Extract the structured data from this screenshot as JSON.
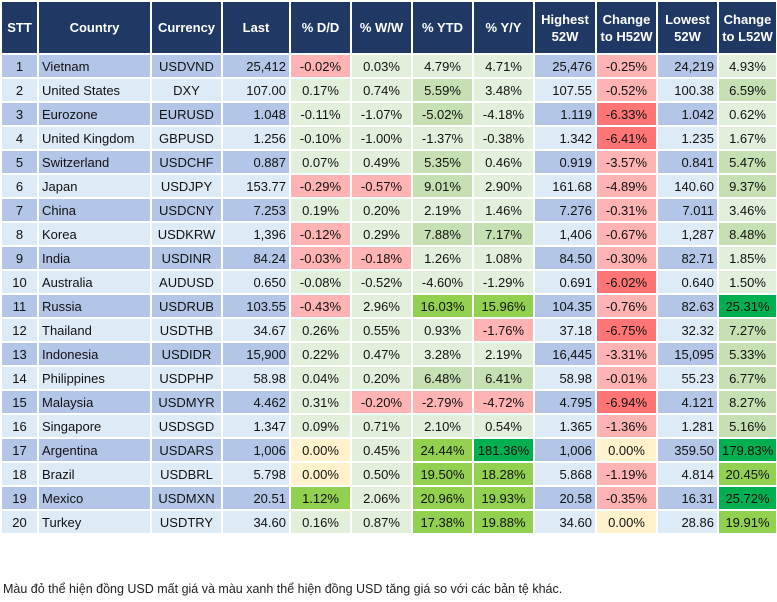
{
  "headers": [
    "STT",
    "Country",
    "Currency",
    "Last",
    "% D/D",
    "% W/W",
    "% YTD",
    "% Y/Y",
    "Highest 52W",
    "Change to H52W",
    "Lowest 52W",
    "Change to L52W"
  ],
  "colors": {
    "header": "#203864",
    "odd_row": "#B4C6E7",
    "even_row": "#DDEBF7",
    "g": "#E2EFDA",
    "p": "#FFB3B3",
    "r": "#FF7575",
    "m": "#C6E0B4",
    "b": "#92D050",
    "d": "#00B050",
    "y": "#FFF2CC"
  },
  "rows": [
    {
      "cells": [
        "1",
        "Vietnam",
        "USDVND",
        "25,412",
        "-0.02%",
        "0.03%",
        "4.79%",
        "4.71%",
        "25,476",
        "-0.25%",
        "24,219",
        "4.93%"
      ],
      "hl": [
        "p",
        "g",
        "g",
        "g",
        "p",
        "g"
      ]
    },
    {
      "cells": [
        "2",
        "United States",
        "DXY",
        "107.00",
        "0.17%",
        "0.74%",
        "5.59%",
        "3.48%",
        "107.55",
        "-0.52%",
        "100.38",
        "6.59%"
      ],
      "hl": [
        "g",
        "g",
        "m",
        "g",
        "p",
        "m"
      ]
    },
    {
      "cells": [
        "3",
        "Eurozone",
        "EURUSD",
        "1.048",
        "-0.11%",
        "-1.07%",
        "-5.02%",
        "-4.18%",
        "1.119",
        "-6.33%",
        "1.042",
        "0.62%"
      ],
      "hl": [
        "g",
        "g",
        "m",
        "g",
        "r",
        "g"
      ]
    },
    {
      "cells": [
        "4",
        "United Kingdom",
        "GBPUSD",
        "1.256",
        "-0.10%",
        "-1.00%",
        "-1.37%",
        "-0.38%",
        "1.342",
        "-6.41%",
        "1.235",
        "1.67%"
      ],
      "hl": [
        "g",
        "g",
        "g",
        "g",
        "r",
        "g"
      ]
    },
    {
      "cells": [
        "5",
        "Switzerland",
        "USDCHF",
        "0.887",
        "0.07%",
        "0.49%",
        "5.35%",
        "0.46%",
        "0.919",
        "-3.57%",
        "0.841",
        "5.47%"
      ],
      "hl": [
        "g",
        "g",
        "m",
        "g",
        "p",
        "m"
      ]
    },
    {
      "cells": [
        "6",
        "Japan",
        "USDJPY",
        "153.77",
        "-0.29%",
        "-0.57%",
        "9.01%",
        "2.90%",
        "161.68",
        "-4.89%",
        "140.60",
        "9.37%"
      ],
      "hl": [
        "p",
        "p",
        "m",
        "g",
        "p",
        "m"
      ]
    },
    {
      "cells": [
        "7",
        "China",
        "USDCNY",
        "7.253",
        "0.19%",
        "0.20%",
        "2.19%",
        "1.46%",
        "7.276",
        "-0.31%",
        "7.011",
        "3.46%"
      ],
      "hl": [
        "g",
        "g",
        "g",
        "g",
        "p",
        "g"
      ]
    },
    {
      "cells": [
        "8",
        "Korea",
        "USDKRW",
        "1,396",
        "-0.12%",
        "0.29%",
        "7.88%",
        "7.17%",
        "1,406",
        "-0.67%",
        "1,287",
        "8.48%"
      ],
      "hl": [
        "p",
        "g",
        "m",
        "m",
        "p",
        "m"
      ]
    },
    {
      "cells": [
        "9",
        "India",
        "USDINR",
        "84.24",
        "-0.03%",
        "-0.18%",
        "1.26%",
        "1.08%",
        "84.50",
        "-0.30%",
        "82.71",
        "1.85%"
      ],
      "hl": [
        "p",
        "p",
        "g",
        "g",
        "p",
        "g"
      ]
    },
    {
      "cells": [
        "10",
        "Australia",
        "AUDUSD",
        "0.650",
        "-0.08%",
        "-0.52%",
        "-4.60%",
        "-1.29%",
        "0.691",
        "-6.02%",
        "0.640",
        "1.50%"
      ],
      "hl": [
        "g",
        "g",
        "g",
        "g",
        "r",
        "g"
      ]
    },
    {
      "cells": [
        "11",
        "Russia",
        "USDRUB",
        "103.55",
        "-0.43%",
        "2.96%",
        "16.03%",
        "15.96%",
        "104.35",
        "-0.76%",
        "82.63",
        "25.31%"
      ],
      "hl": [
        "p",
        "g",
        "b",
        "b",
        "p",
        "d"
      ]
    },
    {
      "cells": [
        "12",
        "Thailand",
        "USDTHB",
        "34.67",
        "0.26%",
        "0.55%",
        "0.93%",
        "-1.76%",
        "37.18",
        "-6.75%",
        "32.32",
        "7.27%"
      ],
      "hl": [
        "g",
        "g",
        "g",
        "p",
        "r",
        "m"
      ]
    },
    {
      "cells": [
        "13",
        "Indonesia",
        "USDIDR",
        "15,900",
        "0.22%",
        "0.47%",
        "3.28%",
        "2.19%",
        "16,445",
        "-3.31%",
        "15,095",
        "5.33%"
      ],
      "hl": [
        "g",
        "g",
        "g",
        "g",
        "p",
        "m"
      ]
    },
    {
      "cells": [
        "14",
        "Philippines",
        "USDPHP",
        "58.98",
        "0.04%",
        "0.20%",
        "6.48%",
        "6.41%",
        "58.98",
        "-0.01%",
        "55.23",
        "6.77%"
      ],
      "hl": [
        "g",
        "g",
        "m",
        "m",
        "p",
        "m"
      ]
    },
    {
      "cells": [
        "15",
        "Malaysia",
        "USDMYR",
        "4.462",
        "0.31%",
        "-0.20%",
        "-2.79%",
        "-4.72%",
        "4.795",
        "-6.94%",
        "4.121",
        "8.27%"
      ],
      "hl": [
        "g",
        "p",
        "p",
        "p",
        "r",
        "m"
      ]
    },
    {
      "cells": [
        "16",
        "Singapore",
        "USDSGD",
        "1.347",
        "0.09%",
        "0.71%",
        "2.10%",
        "0.54%",
        "1.365",
        "-1.36%",
        "1.281",
        "5.16%"
      ],
      "hl": [
        "g",
        "g",
        "g",
        "g",
        "p",
        "m"
      ]
    },
    {
      "cells": [
        "17",
        "Argentina",
        "USDARS",
        "1,006",
        "0.00%",
        "0.45%",
        "24.44%",
        "181.36%",
        "1,006",
        "0.00%",
        "359.50",
        "179.83%"
      ],
      "hl": [
        "y",
        "g",
        "b",
        "d",
        "y",
        "d"
      ]
    },
    {
      "cells": [
        "18",
        "Brazil",
        "USDBRL",
        "5.798",
        "0.00%",
        "0.50%",
        "19.50%",
        "18.28%",
        "5.868",
        "-1.19%",
        "4.814",
        "20.45%"
      ],
      "hl": [
        "y",
        "g",
        "b",
        "b",
        "p",
        "b"
      ]
    },
    {
      "cells": [
        "19",
        "Mexico",
        "USDMXN",
        "20.51",
        "1.12%",
        "2.06%",
        "20.96%",
        "19.93%",
        "20.58",
        "-0.35%",
        "16.31",
        "25.72%"
      ],
      "hl": [
        "b",
        "g",
        "b",
        "b",
        "p",
        "d"
      ]
    },
    {
      "cells": [
        "20",
        "Turkey",
        "USDTRY",
        "34.60",
        "0.16%",
        "0.87%",
        "17.38%",
        "19.88%",
        "34.60",
        "0.00%",
        "28.86",
        "19.91%"
      ],
      "hl": [
        "g",
        "g",
        "b",
        "b",
        "y",
        "b"
      ]
    }
  ],
  "footer": "Màu đỏ thể hiện đồng USD mất giá và màu xanh thể hiện đồng USD tăng giá so với các bản tệ khác."
}
